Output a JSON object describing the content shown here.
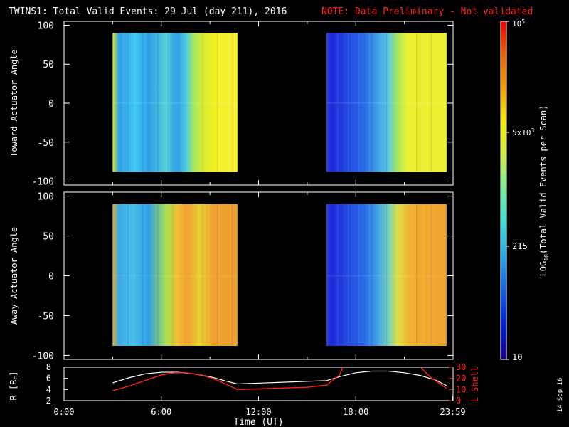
{
  "header": {
    "title": "TWINS1: Total Valid Events: 29 Jul (day 211), 2016",
    "note": "NOTE: Data Preliminary - Not validated",
    "note_color": "#ff2020"
  },
  "side_date": "14 Sep 16",
  "chart_data": [
    {
      "type": "heatmap",
      "ylabel": "Toward Actuator Angle",
      "ylim": [
        -105,
        105
      ],
      "yticks": [
        -100,
        -50,
        0,
        50,
        100
      ],
      "xlim_hours": [
        0,
        24
      ],
      "data_blocks": [
        {
          "start_hour": 3.0,
          "end_hour": 10.7,
          "angle_range": [
            -88,
            90
          ],
          "profile": [
            [
              3.0,
              "#cfe828"
            ],
            [
              3.4,
              "#2f9ee8"
            ],
            [
              4.4,
              "#3fc8f0"
            ],
            [
              5.2,
              "#2f9ee8"
            ],
            [
              6.3,
              "#55d0d8"
            ],
            [
              7.0,
              "#2f9ee8"
            ],
            [
              7.6,
              "#55d0d8"
            ],
            [
              8.0,
              "#a8e860"
            ],
            [
              8.6,
              "#d8ec30"
            ],
            [
              9.2,
              "#f0f020"
            ],
            [
              10.0,
              "#f4f030"
            ]
          ]
        },
        {
          "start_hour": 16.2,
          "end_hour": 23.6,
          "angle_range": [
            -88,
            90
          ],
          "profile": [
            [
              16.2,
              "#2840e0"
            ],
            [
              16.5,
              "#1e2ad8"
            ],
            [
              18.5,
              "#2a6ae8"
            ],
            [
              19.2,
              "#3a98e8"
            ],
            [
              20.0,
              "#58c8e0"
            ],
            [
              20.6,
              "#a8e858"
            ],
            [
              21.2,
              "#ecf030"
            ],
            [
              23.6,
              "#ecf030"
            ]
          ]
        }
      ]
    },
    {
      "type": "heatmap",
      "ylabel": "Away Actuator Angle",
      "ylim": [
        -105,
        105
      ],
      "yticks": [
        -100,
        -50,
        0,
        50,
        100
      ],
      "xlim_hours": [
        0,
        24
      ],
      "data_blocks": [
        {
          "start_hour": 3.0,
          "end_hour": 10.7,
          "angle_range": [
            -88,
            90
          ],
          "profile": [
            [
              3.0,
              "#e0b030"
            ],
            [
              3.4,
              "#3aa8e8"
            ],
            [
              4.2,
              "#48c0e8"
            ],
            [
              5.2,
              "#2f9ee8"
            ],
            [
              6.3,
              "#a8e050"
            ],
            [
              7.0,
              "#f0c030"
            ],
            [
              7.6,
              "#f0a030"
            ],
            [
              8.4,
              "#e8d030"
            ],
            [
              9.2,
              "#f0a030"
            ],
            [
              10.0,
              "#f0a030"
            ]
          ]
        },
        {
          "start_hour": 16.2,
          "end_hour": 23.6,
          "angle_range": [
            -88,
            90
          ],
          "profile": [
            [
              16.2,
              "#2840e0"
            ],
            [
              16.5,
              "#1e2ad8"
            ],
            [
              18.5,
              "#2a6ae8"
            ],
            [
              19.2,
              "#3a98e8"
            ],
            [
              20.0,
              "#70d0c0"
            ],
            [
              20.6,
              "#e0e040"
            ],
            [
              21.4,
              "#f0b030"
            ],
            [
              23.6,
              "#f0a030"
            ]
          ]
        }
      ]
    },
    {
      "type": "line",
      "ylabel": "R [R",
      "ylabel_sub": "E",
      "ylabel_close": "]",
      "ylim": [
        2,
        8
      ],
      "yticks": [
        2,
        4,
        6,
        8
      ],
      "y2label": "L Shell",
      "y2lim": [
        0,
        30
      ],
      "y2ticks": [
        0,
        10,
        20,
        30
      ],
      "xlabel": "Time (UT)",
      "xticks": [
        0,
        6,
        12,
        18,
        23.98
      ],
      "xtick_labels": [
        "0:00",
        "6:00",
        "12:00",
        "18:00",
        "23:59"
      ],
      "series": [
        {
          "axis": "left",
          "color": "#ffffff",
          "x": [
            3.0,
            4.0,
            5.0,
            6.0,
            7.0,
            8.0,
            9.0,
            10.0,
            10.7,
            16.2,
            17.0,
            18.0,
            19.0,
            20.0,
            21.0,
            22.0,
            23.0,
            23.6
          ],
          "y": [
            5.2,
            6.1,
            6.8,
            7.1,
            7.1,
            6.8,
            6.3,
            5.5,
            5.0,
            5.6,
            6.3,
            7.0,
            7.3,
            7.3,
            7.0,
            6.5,
            5.6,
            4.7
          ]
        },
        {
          "axis": "right",
          "color": "#ff2020",
          "segments": [
            {
              "x": [
                3.0,
                4.0,
                5.0,
                6.0,
                6.8,
                7.5,
                8.5,
                9.5,
                10.7,
                15.0,
                16.2,
                17.0,
                17.2
              ],
              "y": [
                9,
                13,
                18,
                23,
                25,
                25,
                23,
                18,
                10,
                12,
                14,
                23,
                30
              ]
            },
            {
              "x": [
                22.0,
                22.6,
                23.6
              ],
              "y": [
                30,
                21,
                11
              ]
            }
          ]
        }
      ]
    }
  ],
  "colorbar": {
    "label_main": "LOG",
    "label_sub": "10",
    "label_rest": "(Total Valid Events per Scan)",
    "tick_top_base": "10",
    "tick_top_exp": "5",
    "tick_mid_base": "5x10",
    "tick_mid_exp": "3",
    "tick_low": "215",
    "tick_bottom": "10",
    "stops": [
      "#180090",
      "#0020e0",
      "#1060f0",
      "#20a8f0",
      "#30e0e0",
      "#70f0a0",
      "#d0f040",
      "#f8f000",
      "#f8a000",
      "#f86000",
      "#f80000"
    ]
  }
}
